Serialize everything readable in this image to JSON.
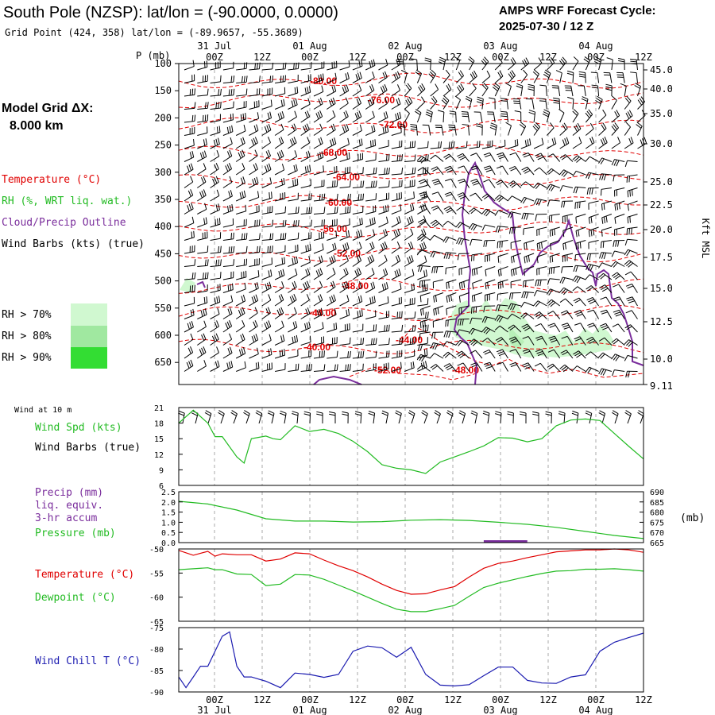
{
  "header": {
    "title": "South Pole (NZSP):  lat/lon = (-90.0000, 0.0000)",
    "subtitle": "Grid Point (424, 358) lat/lon = (-89.9657, -55.3689)",
    "cycle_line1": "AMPS WRF Forecast Cycle:",
    "cycle_line2": "2025-07-30 / 12  Z"
  },
  "model": {
    "grid_label": "Model Grid ΔX:",
    "grid_value": "8.000 km"
  },
  "legend": {
    "temperature": "Temperature (°C)",
    "rh": "RH (%, WRT liq. wat.)",
    "cloud": "Cloud/Precip Outline",
    "wind": "Wind Barbs (kts) (true)",
    "rh70": "RH > 70%",
    "rh80": "RH > 80%",
    "rh90": "RH > 90%",
    "colors": {
      "temperature": "#e00000",
      "rh": "#22bb22",
      "cloud": "#7a2d9c",
      "wind": "#000000",
      "rh70": "#d0f8d0",
      "rh80": "#a0e8a0",
      "rh90": "#33dd33"
    }
  },
  "axes": {
    "time_top_labels": [
      "00Z",
      "12Z",
      "00Z",
      "12Z",
      "00Z",
      "12Z",
      "00Z",
      "12Z",
      "00Z",
      "12Z"
    ],
    "date_top_labels": [
      "31 Jul",
      "01 Aug",
      "02 Aug",
      "03 Aug",
      "04 Aug"
    ],
    "time_bottom_labels": [
      "00Z",
      "12Z",
      "00Z",
      "12Z",
      "00Z",
      "12Z",
      "00Z",
      "12Z",
      "00Z",
      "12Z"
    ],
    "date_bottom_labels": [
      "31 Jul",
      "01 Aug",
      "02 Aug",
      "03 Aug",
      "04 Aug"
    ],
    "p_label": "P (mb)",
    "pressure_ticks": [
      "100",
      "150",
      "200",
      "250",
      "300",
      "350",
      "400",
      "450",
      "500",
      "550",
      "600",
      "650"
    ],
    "height_ticks": [
      "45.0",
      "40.0",
      "35.0",
      "30.0",
      "25.0",
      "22.5",
      "20.0",
      "17.5",
      "15.0",
      "12.5",
      "10.0",
      "9.11"
    ],
    "height_label": "Kft MSL"
  },
  "chart_data": [
    {
      "type": "line",
      "panel": "sounding",
      "isotherm_labels": [
        "-80.00",
        "-76.00",
        "-72.00",
        "-68.00",
        "-64.00",
        "-60.00",
        "-56.00",
        "-52.00",
        "-48.00",
        "-44.00",
        "-40.00",
        "-44.00",
        "-52.00",
        "-48.00"
      ]
    },
    {
      "type": "line",
      "panel": "wind10m",
      "header": "Wind at 10 m",
      "label": "Wind Spd (kts)",
      "label2": "Wind Barbs (true)",
      "ylim": [
        6,
        21
      ],
      "yticks": [
        "21",
        "18",
        "15",
        "12",
        "9",
        "6"
      ],
      "x_hours": [
        0,
        6,
        12,
        15,
        18,
        24,
        27,
        30,
        36,
        39,
        42,
        48,
        54,
        60,
        66,
        72,
        78,
        84,
        90,
        96,
        102,
        108,
        114,
        120,
        126,
        132,
        138,
        144,
        150,
        156,
        162,
        168,
        174,
        180,
        186,
        192
      ],
      "values": [
        18,
        20.5,
        18,
        15.4,
        15.4,
        11.5,
        10.3,
        15,
        15.5,
        15,
        14.8,
        17.5,
        16.4,
        16.8,
        16,
        14.5,
        12.5,
        10,
        9.3,
        9,
        8.3,
        10.5,
        11.5,
        12.5,
        13.6,
        15.2,
        15.1,
        14.4,
        15,
        17.5,
        18.6,
        18.8,
        18.5,
        16,
        13.5,
        11.1
      ]
    },
    {
      "type": "line",
      "panel": "precip_pressure",
      "label_precip1": "Precip (mm)",
      "label_precip2": "liq. equiv.",
      "label_precip3": "3-hr accum",
      "label_pressure": "Pressure (mb)",
      "units_right": "(mb)",
      "yticks_left": [
        "2.5",
        "2.0",
        "1.5",
        "1.0",
        "0.5",
        "0.0"
      ],
      "yticks_right": [
        "690",
        "685",
        "680",
        "675",
        "670",
        "665"
      ],
      "ylim_pressure": [
        665,
        690
      ],
      "x_hours": [
        0,
        12,
        24,
        36,
        48,
        60,
        72,
        84,
        96,
        108,
        120,
        132,
        144,
        156,
        168,
        180,
        192
      ],
      "pressure": [
        685.3,
        684,
        681,
        676.7,
        675.6,
        675.6,
        675.1,
        675.3,
        676,
        676.3,
        675.9,
        675,
        674,
        672.5,
        670.5,
        668.5,
        667
      ],
      "precip_x_hours": [
        126,
        144
      ],
      "precip": [
        0.02,
        0.02
      ]
    },
    {
      "type": "line",
      "panel": "temperature",
      "label_t": "Temperature (°C)",
      "label_d": "Dewpoint (°C)",
      "yticks": [
        "-50",
        "-55",
        "-60",
        "-65"
      ],
      "ylim": [
        -65,
        -50
      ],
      "x_hours": [
        0,
        6,
        12,
        15,
        18,
        24,
        30,
        36,
        42,
        48,
        54,
        60,
        66,
        72,
        78,
        84,
        90,
        96,
        102,
        108,
        114,
        120,
        126,
        132,
        138,
        144,
        150,
        156,
        162,
        168,
        174,
        180,
        186,
        192
      ],
      "temperature": [
        -50.3,
        -51.3,
        -50.5,
        -51.5,
        -51,
        -51.2,
        -51.2,
        -52.5,
        -52.1,
        -50.8,
        -51,
        -52.3,
        -53.5,
        -54.5,
        -55.8,
        -57.3,
        -58.6,
        -59.4,
        -59.3,
        -58.5,
        -57.8,
        -55.8,
        -54,
        -53,
        -52.5,
        -51.8,
        -51.2,
        -50.6,
        -50.4,
        -50.2,
        -50.2,
        -50,
        -50.2,
        -50.7
      ],
      "dewpoint": [
        -54.3,
        -54.1,
        -53.9,
        -54.3,
        -54.3,
        -55.2,
        -55.3,
        -57.6,
        -57.3,
        -55.3,
        -55.4,
        -56.3,
        -57.5,
        -58.7,
        -60,
        -61.3,
        -62.5,
        -63,
        -63,
        -62.4,
        -61.7,
        -59.8,
        -58,
        -57.1,
        -56.4,
        -55.7,
        -55.1,
        -54.6,
        -54.5,
        -54.2,
        -54.2,
        -54.1,
        -54.3,
        -54.6
      ]
    },
    {
      "type": "line",
      "panel": "windchill",
      "label": "Wind Chill T (°C)",
      "yticks": [
        "-75",
        "-80",
        "-85",
        "-90"
      ],
      "ylim": [
        -90,
        -75
      ],
      "x_hours": [
        0,
        3,
        6,
        9,
        12,
        15,
        18,
        21,
        24,
        27,
        30,
        33,
        36,
        42,
        48,
        54,
        60,
        66,
        72,
        78,
        84,
        90,
        96,
        102,
        108,
        114,
        120,
        126,
        132,
        138,
        144,
        150,
        156,
        162,
        168,
        174,
        180,
        186,
        192
      ],
      "values": [
        -86.5,
        -89,
        -86.5,
        -84,
        -84,
        -80.5,
        -77,
        -76,
        -84,
        -86.5,
        -86.5,
        -87,
        -87.5,
        -89,
        -85.6,
        -85.9,
        -86.6,
        -85.9,
        -80.5,
        -79.3,
        -79.7,
        -81.9,
        -79.6,
        -85.9,
        -88.4,
        -88.6,
        -88.3,
        -86.2,
        -84.2,
        -84.2,
        -87.3,
        -87.9,
        -88,
        -86.5,
        -86,
        -80.5,
        -78.4,
        -77.3,
        -76.3
      ]
    }
  ]
}
